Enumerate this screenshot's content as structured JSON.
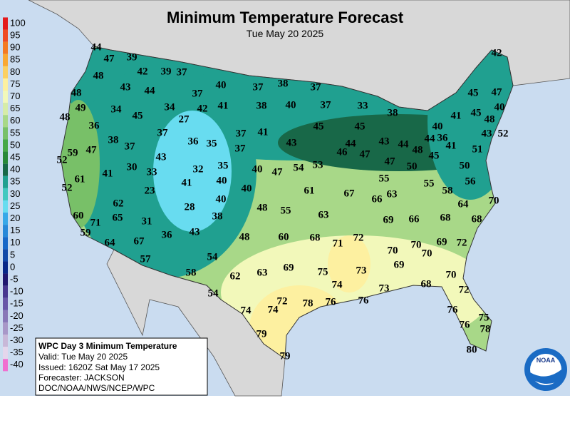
{
  "header": {
    "title": "Minimum Temperature Forecast",
    "subtitle": "Tue May 20 2025"
  },
  "legend": [
    {
      "value": 100,
      "color": "#e41a1c"
    },
    {
      "value": 95,
      "color": "#ef4a22"
    },
    {
      "value": 90,
      "color": "#f47a22"
    },
    {
      "value": 85,
      "color": "#f9a832"
    },
    {
      "value": 80,
      "color": "#fbd062"
    },
    {
      "value": 75,
      "color": "#fdf0a0"
    },
    {
      "value": 70,
      "color": "#f2f8ba"
    },
    {
      "value": 65,
      "color": "#d6eca8"
    },
    {
      "value": 60,
      "color": "#a8d888"
    },
    {
      "value": 55,
      "color": "#78c068"
    },
    {
      "value": 50,
      "color": "#48a848"
    },
    {
      "value": 45,
      "color": "#288838"
    },
    {
      "value": 40,
      "color": "#186848"
    },
    {
      "value": 35,
      "color": "#20a090"
    },
    {
      "value": 30,
      "color": "#40c8c0"
    },
    {
      "value": 25,
      "color": "#68dcf0"
    },
    {
      "value": 20,
      "color": "#38a8e8"
    },
    {
      "value": 15,
      "color": "#2888d8"
    },
    {
      "value": 10,
      "color": "#1868c8"
    },
    {
      "value": 5,
      "color": "#1048a8"
    },
    {
      "value": 0,
      "color": "#082888"
    },
    {
      "value": -5,
      "color": "#201870"
    },
    {
      "value": -10,
      "color": "#483890"
    },
    {
      "value": -15,
      "color": "#6858a8"
    },
    {
      "value": -20,
      "color": "#8878b8"
    },
    {
      "value": -25,
      "color": "#a898c8"
    },
    {
      "value": -30,
      "color": "#c8b8d8"
    },
    {
      "value": -35,
      "color": "#e4d6ec"
    },
    {
      "value": -40,
      "color": "#f070d0"
    }
  ],
  "stations": [
    44,
    47,
    39,
    48,
    42,
    39,
    37,
    43,
    44,
    37,
    40,
    38,
    37,
    37,
    42,
    48,
    49,
    34,
    45,
    34,
    42,
    41,
    38,
    40,
    37,
    33,
    38,
    45,
    47,
    45,
    48,
    40,
    48,
    36,
    27,
    37,
    37,
    41,
    45,
    45,
    40,
    41,
    43,
    52,
    38,
    37,
    36,
    35,
    37,
    43,
    44,
    43,
    44,
    44,
    36,
    41,
    48,
    45,
    51,
    52,
    59,
    47,
    43,
    30,
    33,
    32,
    35,
    40,
    47,
    54,
    53,
    46,
    47,
    47,
    50,
    50,
    61,
    41,
    40,
    40,
    55,
    55,
    56,
    52,
    23,
    41,
    61,
    67,
    66,
    63,
    58,
    64,
    70,
    62,
    28,
    40,
    48,
    55,
    63,
    69,
    66,
    68,
    68,
    60,
    71,
    65,
    31,
    38,
    59,
    36,
    43,
    48,
    60,
    68,
    72,
    71,
    70,
    70,
    70,
    69,
    72,
    64,
    67,
    54,
    57,
    69,
    63,
    75,
    73,
    69,
    58,
    62,
    70,
    74,
    73,
    68,
    72,
    54,
    76,
    74,
    74,
    72,
    78,
    76,
    76,
    75,
    76,
    78,
    79,
    80,
    79
  ],
  "info_box": {
    "title": "WPC Day 3 Minimum Temperature",
    "lines": [
      "Valid: Tue May 20 2025",
      "Issued: 1620Z Sat May 17 2025",
      "Forecaster: JACKSON",
      "DOC/NOAA/NWS/NCEP/WPC"
    ]
  },
  "logo": "NOAA"
}
